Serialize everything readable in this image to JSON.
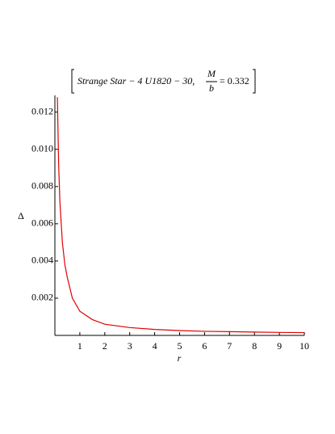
{
  "chart_data": {
    "type": "line",
    "title": "Strange Star − 4 U1820 − 30,",
    "title_fraction": {
      "numerator": "M",
      "denominator": "b"
    },
    "title_suffix": "= 0.332",
    "xlabel": "r",
    "ylabel": "Δ",
    "x": [
      0.1,
      0.15,
      0.2,
      0.3,
      0.4,
      0.5,
      0.7,
      1,
      1.5,
      2,
      3,
      4,
      5,
      6,
      7,
      8,
      9,
      10
    ],
    "series": [
      {
        "color": "#e00000",
        "values": [
          0.0128,
          0.0092,
          0.0072,
          0.005,
          0.0038,
          0.0031,
          0.002,
          0.0013,
          0.00085,
          0.0006,
          0.00042,
          0.00032,
          0.00026,
          0.00022,
          0.0002,
          0.00018,
          0.00016,
          0.00015
        ]
      }
    ],
    "xlim": [
      0,
      10
    ],
    "ylim": [
      0,
      0.0129
    ],
    "xticks": [
      1,
      2,
      3,
      4,
      5,
      6,
      7,
      8,
      9,
      10
    ],
    "yticks": [
      0.002,
      0.004,
      0.006,
      0.008,
      {
        "value": 0.01,
        "label": "0.010"
      },
      0.012
    ]
  }
}
